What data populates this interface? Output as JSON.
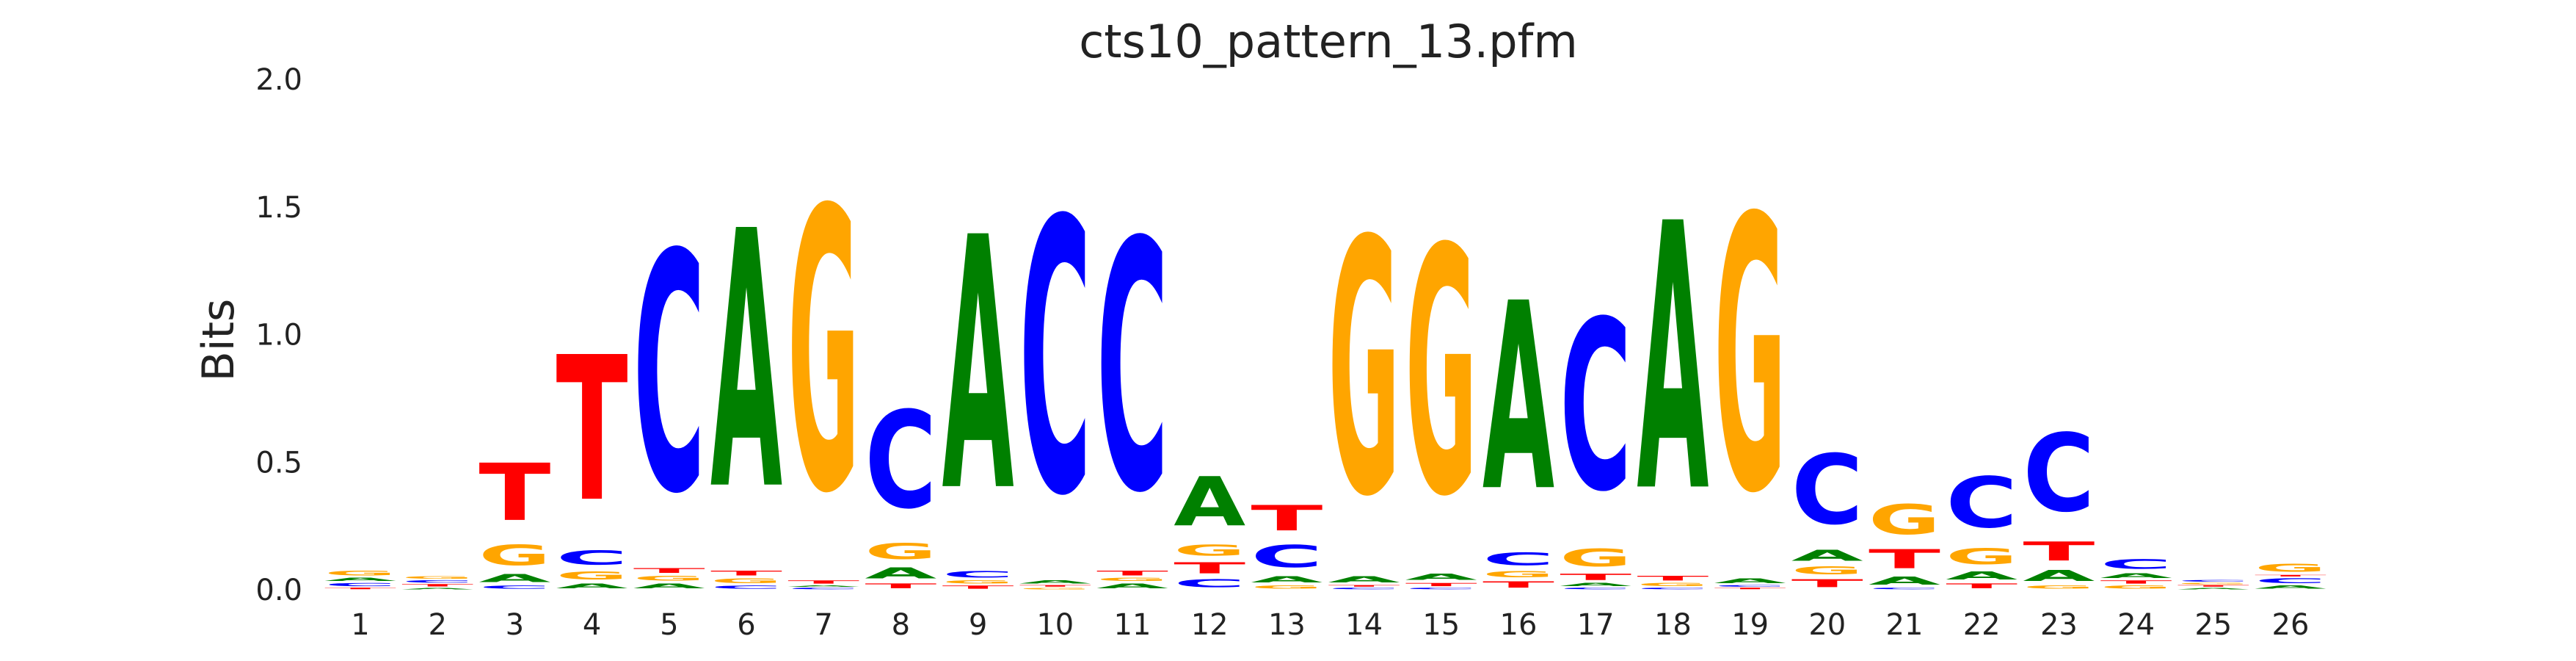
{
  "chart_data": {
    "type": "sequence-logo",
    "title": "cts10_pattern_13.pfm",
    "xlabel": "",
    "ylabel": "Bits",
    "ylim": [
      0,
      2.0
    ],
    "y_ticks": [
      "0.0",
      "0.5",
      "1.0",
      "1.5",
      "2.0"
    ],
    "x_ticks": [
      "1",
      "2",
      "3",
      "4",
      "5",
      "6",
      "7",
      "8",
      "9",
      "10",
      "11",
      "12",
      "13",
      "14",
      "15",
      "16",
      "17",
      "18",
      "19",
      "20",
      "21",
      "22",
      "23",
      "24",
      "25",
      "26"
    ],
    "grid": false,
    "colors": {
      "A": "#008000",
      "C": "#0000ff",
      "G": "#ffa500",
      "T": "#ff0000"
    },
    "positions": [
      [
        [
          "T",
          0.01
        ],
        [
          "C",
          0.02
        ],
        [
          "A",
          0.02
        ],
        [
          "G",
          0.03
        ]
      ],
      [
        [
          "A",
          0.01
        ],
        [
          "T",
          0.015
        ],
        [
          "C",
          0.015
        ],
        [
          "G",
          0.015
        ]
      ],
      [
        [
          "C",
          0.02
        ],
        [
          "A",
          0.05
        ],
        [
          "G",
          0.13
        ],
        [
          "T",
          0.36
        ]
      ],
      [
        [
          "A",
          0.03
        ],
        [
          "G",
          0.05
        ],
        [
          "C",
          0.09
        ],
        [
          "T",
          0.91
        ]
      ],
      [
        [
          "A",
          0.03
        ],
        [
          "G",
          0.03
        ],
        [
          "T",
          0.03
        ],
        [
          "C",
          1.5
        ]
      ],
      [
        [
          "C",
          0.02
        ],
        [
          "G",
          0.03
        ],
        [
          "T",
          0.03
        ],
        [
          "A",
          1.62
        ]
      ],
      [
        [
          "C",
          0.01
        ],
        [
          "A",
          0.01
        ],
        [
          "T",
          0.02
        ],
        [
          "G",
          1.77
        ]
      ],
      [
        [
          "T",
          0.03
        ],
        [
          "A",
          0.07
        ],
        [
          "G",
          0.1
        ],
        [
          "C",
          0.61
        ]
      ],
      [
        [
          "T",
          0.02
        ],
        [
          "G",
          0.02
        ],
        [
          "C",
          0.04
        ],
        [
          "A",
          1.59
        ]
      ],
      [
        [
          "G",
          0.01
        ],
        [
          "T",
          0.01
        ],
        [
          "A",
          0.02
        ],
        [
          "C",
          1.72
        ]
      ],
      [
        [
          "A",
          0.03
        ],
        [
          "G",
          0.02
        ],
        [
          "T",
          0.03
        ],
        [
          "C",
          1.57
        ]
      ],
      [
        [
          "C",
          0.05
        ],
        [
          "T",
          0.07
        ],
        [
          "G",
          0.07
        ],
        [
          "A",
          0.31
        ]
      ],
      [
        [
          "G",
          0.02
        ],
        [
          "A",
          0.04
        ],
        [
          "C",
          0.14
        ],
        [
          "T",
          0.16
        ]
      ],
      [
        [
          "C",
          0.01
        ],
        [
          "T",
          0.01
        ],
        [
          "A",
          0.04
        ],
        [
          "G",
          1.6
        ]
      ],
      [
        [
          "C",
          0.01
        ],
        [
          "T",
          0.02
        ],
        [
          "A",
          0.04
        ],
        [
          "G",
          1.55
        ]
      ],
      [
        [
          "T",
          0.04
        ],
        [
          "G",
          0.04
        ],
        [
          "C",
          0.08
        ],
        [
          "A",
          1.18
        ]
      ],
      [
        [
          "C",
          0.01
        ],
        [
          "A",
          0.02
        ],
        [
          "T",
          0.04
        ],
        [
          "G",
          0.11
        ],
        [
          "C",
          1.07
        ]
      ],
      [
        [
          "C",
          0.01
        ],
        [
          "G",
          0.02
        ],
        [
          "T",
          0.03
        ],
        [
          "A",
          1.68
        ]
      ],
      [
        [
          "T",
          0.01
        ],
        [
          "C",
          0.01
        ],
        [
          "A",
          0.03
        ],
        [
          "G",
          1.72
        ]
      ],
      [
        [
          "T",
          0.05
        ],
        [
          "G",
          0.05
        ],
        [
          "A",
          0.07
        ],
        [
          "C",
          0.44
        ]
      ],
      [
        [
          "C",
          0.01
        ],
        [
          "A",
          0.05
        ],
        [
          "T",
          0.12
        ],
        [
          "G",
          0.19
        ]
      ],
      [
        [
          "T",
          0.03
        ],
        [
          "A",
          0.05
        ],
        [
          "G",
          0.1
        ],
        [
          "C",
          0.32
        ]
      ],
      [
        [
          "G",
          0.02
        ],
        [
          "A",
          0.07
        ],
        [
          "T",
          0.12
        ],
        [
          "C",
          0.49
        ]
      ],
      [
        [
          "G",
          0.02
        ],
        [
          "T",
          0.02
        ],
        [
          "A",
          0.03
        ],
        [
          "C",
          0.06
        ]
      ],
      [
        [
          "A",
          0.01
        ],
        [
          "T",
          0.01
        ],
        [
          "G",
          0.01
        ],
        [
          "C",
          0.01
        ]
      ],
      [
        [
          "A",
          0.02
        ],
        [
          "C",
          0.03
        ],
        [
          "T",
          0.01
        ],
        [
          "G",
          0.05
        ]
      ]
    ]
  }
}
